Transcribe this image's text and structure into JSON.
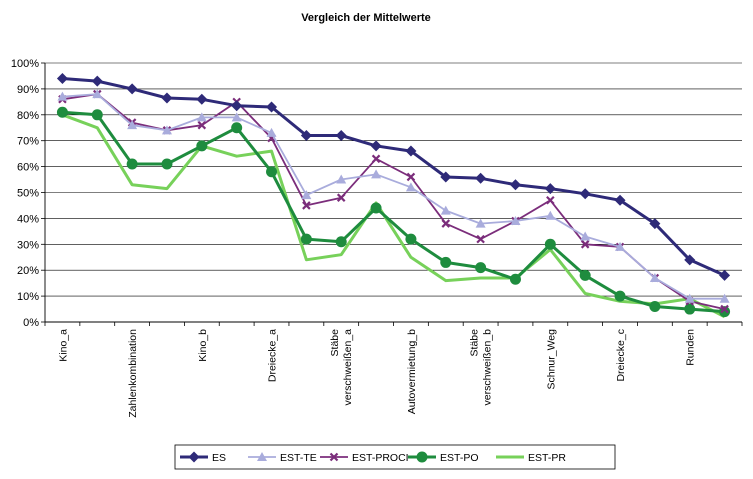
{
  "chart_data": {
    "type": "line",
    "title": "Vergleich der Mittelwerte",
    "xlabel": "",
    "ylabel": "",
    "ylim": [
      0,
      100
    ],
    "yticks": [
      "0%",
      "10%",
      "20%",
      "30%",
      "40%",
      "50%",
      "60%",
      "70%",
      "80%",
      "90%",
      "100%"
    ],
    "categories": [
      "Kino_a",
      "",
      "Zahlenkombination",
      "",
      "Kino_b",
      "",
      "Dreiecke_a",
      "",
      "Stäbe verschweißen_a",
      "",
      "Autovermietung_b",
      "",
      "Stäbe verschweißen_b",
      "",
      "Schnur_Weg",
      "",
      "Dreiecke_c",
      "",
      "Runden",
      ""
    ],
    "grid": true,
    "legend_position": "bottom",
    "series": [
      {
        "name": "ES",
        "color": "#2e2a78",
        "marker": "diamond",
        "values": [
          94,
          93,
          90,
          86.5,
          86,
          83.5,
          83,
          72,
          72,
          68,
          66,
          56,
          55.5,
          53,
          51.5,
          49.5,
          47,
          38,
          24,
          18
        ]
      },
      {
        "name": "EST-TE",
        "color": "#a9acdc",
        "marker": "triangle",
        "values": [
          87,
          88,
          76,
          74,
          79,
          79,
          73,
          49,
          55,
          57,
          52,
          43,
          38,
          39,
          41,
          33,
          29,
          17,
          9,
          9
        ]
      },
      {
        "name": "EST-PROCI",
        "color": "#7b2d7b",
        "marker": "x",
        "values": [
          86,
          88,
          77,
          74,
          76,
          85,
          71,
          45,
          48,
          63,
          56,
          38,
          32,
          39,
          47,
          30,
          29,
          17,
          8,
          5
        ]
      },
      {
        "name": "EST-PO",
        "color": "#1e8c3e",
        "marker": "circle",
        "values": [
          81,
          80,
          61,
          61,
          68,
          75,
          58,
          32,
          31,
          44,
          32,
          23,
          21,
          16.5,
          30,
          18,
          10,
          6,
          5,
          4
        ]
      },
      {
        "name": "EST-PR",
        "color": "#77d15a",
        "marker": "none",
        "values": [
          80,
          75,
          53,
          51.5,
          68,
          64,
          66,
          24,
          26,
          46,
          25,
          16,
          17,
          17,
          28,
          11,
          8,
          7,
          9,
          2
        ]
      }
    ]
  }
}
